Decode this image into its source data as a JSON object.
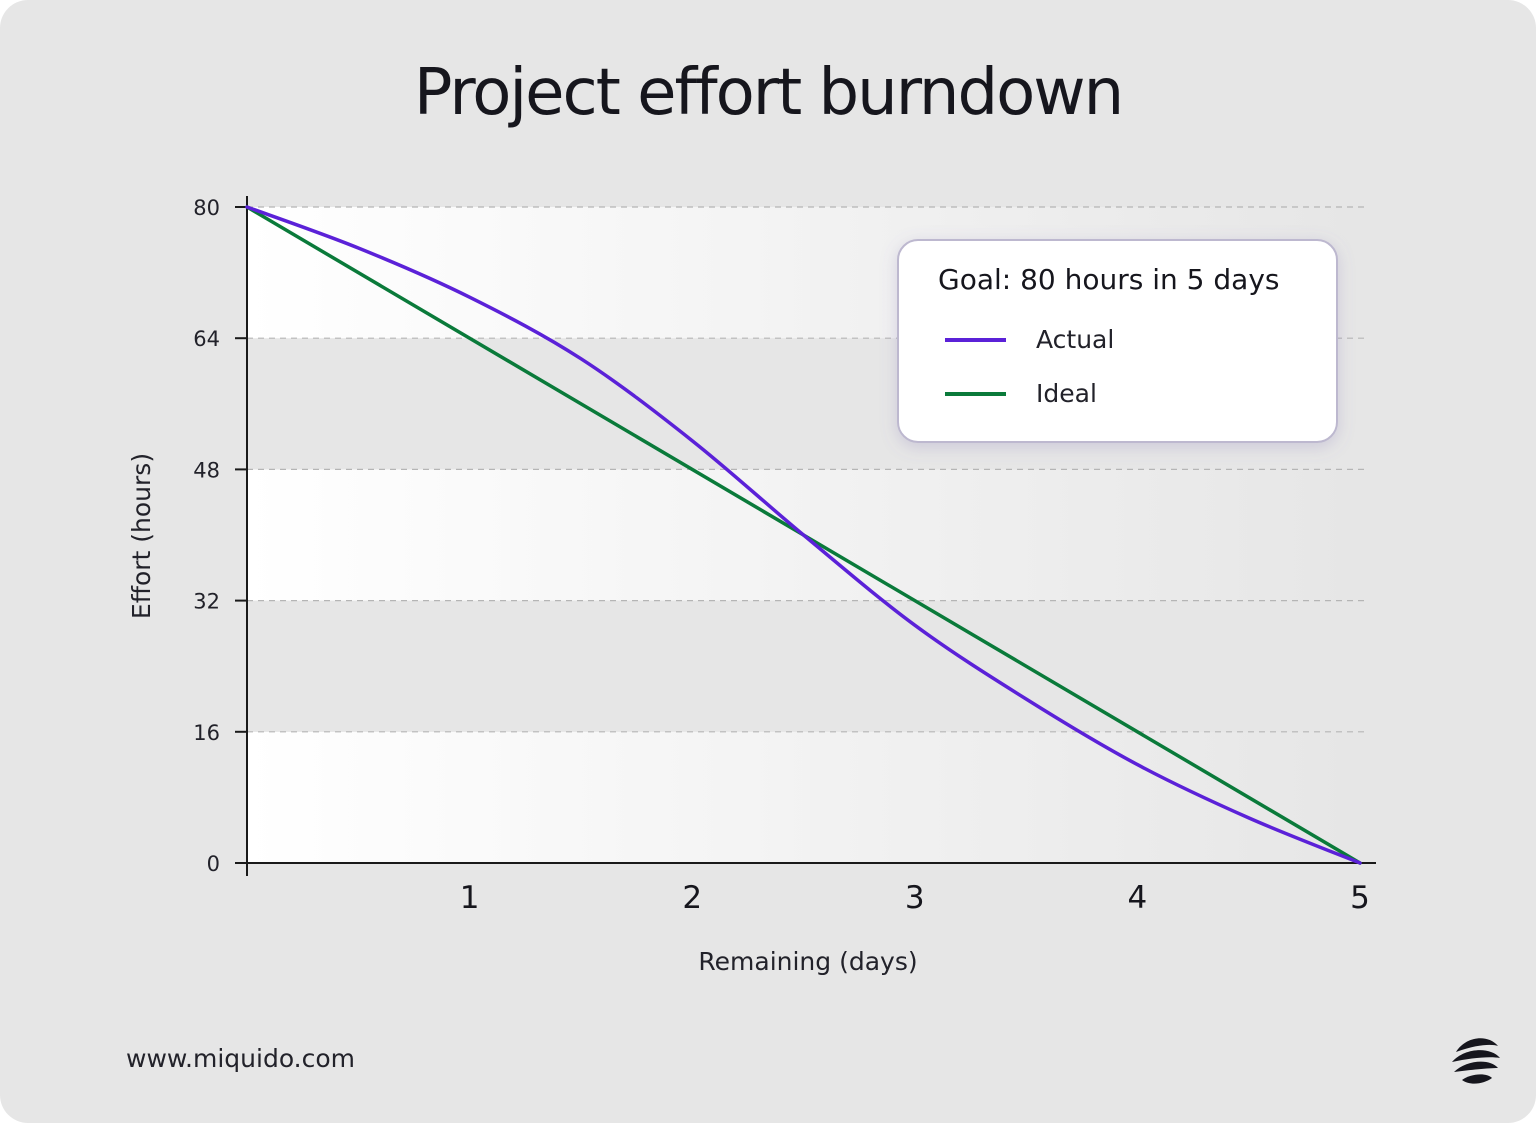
{
  "title": "Project effort burndown",
  "footer": {
    "url": "www.miquido.com"
  },
  "logo": {
    "icon": "miquido-logo-icon"
  },
  "colors": {
    "background": "#e6e6e6",
    "actual": "#5b21d8",
    "ideal": "#0a7a3a",
    "text": "#16161d",
    "grid": "#b5b5b5"
  },
  "chart_data": {
    "type": "line",
    "xlabel": "Remaining (days)",
    "ylabel": "Effort (hours)",
    "xlim": [
      0,
      5
    ],
    "ylim": [
      0,
      80
    ],
    "x_ticks": [
      "1",
      "2",
      "3",
      "4",
      "5"
    ],
    "y_ticks": [
      "0",
      "16",
      "32",
      "48",
      "64",
      "80"
    ],
    "grid": "horizontal dashed",
    "legend": {
      "placement": "top-right",
      "title": "Goal: 80 hours in 5 days"
    },
    "series": [
      {
        "name": "Actual",
        "color": "#5b21d8",
        "x": [
          0,
          0.5,
          1,
          1.5,
          2,
          2.5,
          3,
          3.5,
          4,
          4.5,
          5
        ],
        "y": [
          80,
          75,
          69,
          61.5,
          51.5,
          40,
          29,
          20,
          12,
          5.5,
          0
        ]
      },
      {
        "name": "Ideal",
        "color": "#0a7a3a",
        "x": [
          0,
          5
        ],
        "y": [
          80,
          0
        ]
      }
    ]
  }
}
